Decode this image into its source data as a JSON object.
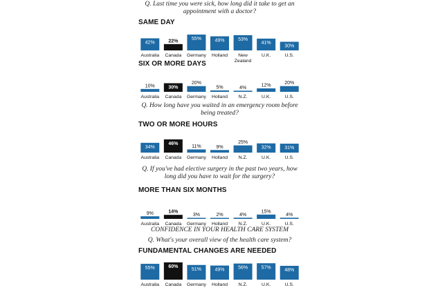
{
  "questions": {
    "q1": "Q. Last time you were sick, how long did it take to get an appointment with a doctor?",
    "q2": "Q. How long have you waited in an emergency room before being treated?",
    "q3": "Q. If you've had elective surgery in the past two years, how long did you have to wait for the surgery?",
    "q4": "Q. What's your overall view of the health care system?"
  },
  "section_title": "CONFIDENCE IN YOUR HEALTH CARE SYSTEM",
  "colors": {
    "bar": "#1d6aa5",
    "highlight": "#111111"
  },
  "chart_data": [
    {
      "type": "bar",
      "title": "SAME DAY",
      "categories": [
        "Australia",
        "Canada",
        "Germany",
        "Holland",
        "New Zealand",
        "U.K.",
        "U.S."
      ],
      "values": [
        42,
        22,
        55,
        49,
        53,
        41,
        30
      ],
      "labels": [
        "42%",
        "22%",
        "55%",
        "49%",
        "53%",
        "41%",
        "30%"
      ],
      "highlight": "Canada",
      "ylim": [
        0,
        60
      ]
    },
    {
      "type": "bar",
      "title": "SIX OR MORE DAYS",
      "categories": [
        "Australia",
        "Canada",
        "Germany",
        "Holland",
        "N.Z.",
        "U.K.",
        "U.S."
      ],
      "values": [
        10,
        30,
        20,
        5,
        4,
        12,
        20
      ],
      "labels": [
        "10%",
        "30%",
        "20%",
        "5%",
        "4%",
        "12%",
        "20%"
      ],
      "highlight": "Canada",
      "ylim": [
        0,
        60
      ]
    },
    {
      "type": "bar",
      "title": "TWO OR MORE HOURS",
      "categories": [
        "Australia",
        "Canada",
        "Germany",
        "Holland",
        "N.Z.",
        "U.K.",
        "U.S."
      ],
      "values": [
        34,
        46,
        11,
        9,
        25,
        32,
        31
      ],
      "labels": [
        "34%",
        "46%",
        "11%",
        "9%",
        "25%",
        "32%",
        "31%"
      ],
      "highlight": "Canada",
      "ylim": [
        0,
        60
      ]
    },
    {
      "type": "bar",
      "title": "MORE THAN SIX MONTHS",
      "categories": [
        "Australia",
        "Canada",
        "Germany",
        "Holland",
        "N.Z.",
        "U.K.",
        "U.S."
      ],
      "values": [
        9,
        14,
        3,
        2,
        4,
        15,
        4
      ],
      "labels": [
        "9%",
        "14%",
        "3%",
        "2%",
        "4%",
        "15%",
        "4%"
      ],
      "highlight": "Canada",
      "ylim": [
        0,
        60
      ]
    },
    {
      "type": "bar",
      "title": "FUNDAMENTAL CHANGES ARE NEEDED",
      "categories": [
        "Australia",
        "Canada",
        "Germany",
        "Holland",
        "N.Z.",
        "U.K.",
        "U.S."
      ],
      "values": [
        55,
        60,
        51,
        49,
        56,
        57,
        48
      ],
      "labels": [
        "55%",
        "60%",
        "51%",
        "49%",
        "56%",
        "57%",
        "48%"
      ],
      "highlight": "Canada",
      "ylim": [
        0,
        60
      ]
    }
  ]
}
